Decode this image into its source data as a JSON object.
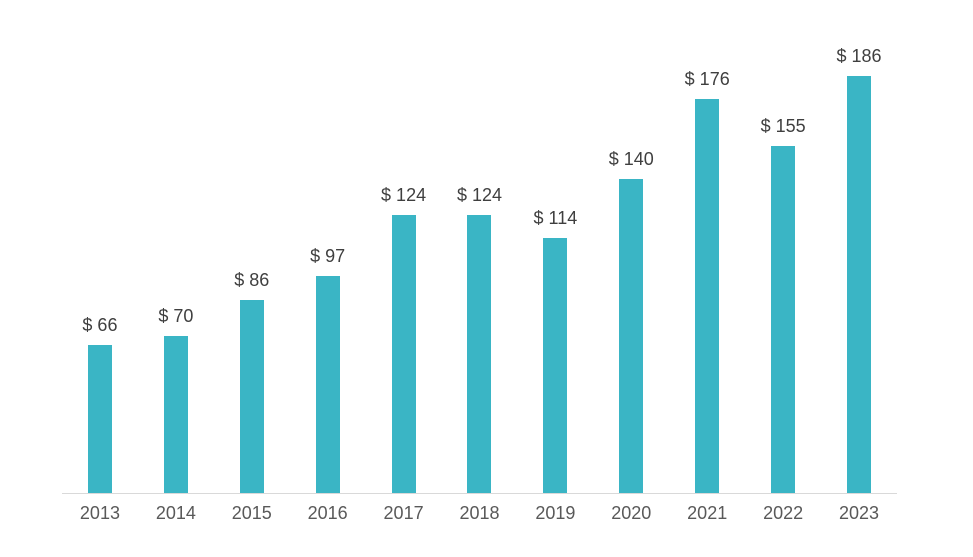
{
  "chart_data": {
    "type": "bar",
    "title": "",
    "xlabel": "",
    "ylabel": "",
    "categories": [
      "2013",
      "2014",
      "2015",
      "2016",
      "2017",
      "2018",
      "2019",
      "2020",
      "2021",
      "2022",
      "2023"
    ],
    "values": [
      66,
      70,
      86,
      97,
      124,
      124,
      114,
      140,
      176,
      155,
      186
    ],
    "value_labels": [
      "$ 66",
      "$ 70",
      "$ 86",
      "$ 97",
      "$ 124",
      "$ 124",
      "$ 114",
      "$ 140",
      "$ 176",
      "$ 155",
      "$ 186"
    ],
    "ylim": [
      0,
      203
    ],
    "grid": false,
    "legend": false,
    "data_labels": true,
    "bar_color": "#3ab5c5",
    "value_label_color": "#3f3f3f",
    "axis_label_color": "#595959",
    "axis_line_color": "#d9d9d9"
  }
}
